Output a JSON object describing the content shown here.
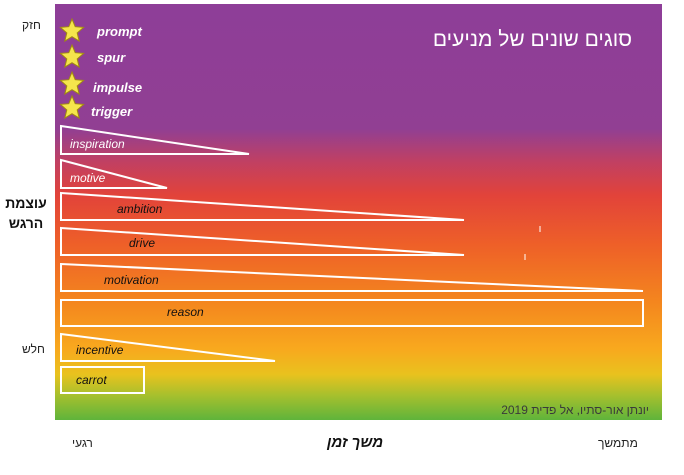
{
  "title": "סוגים שונים של מניעים",
  "credit": "יונתן אור-סתיו, אל פדית 2019",
  "y_axis": {
    "title": "עוצמת הרגש",
    "strong": "חזק",
    "weak": "חלש"
  },
  "x_axis": {
    "title": "משך זמן",
    "start": "רגעי",
    "end": "מתמשך"
  },
  "stars": [
    {
      "label": "prompt"
    },
    {
      "label": "spur"
    },
    {
      "label": "impulse"
    },
    {
      "label": "trigger"
    }
  ],
  "bars": [
    {
      "label": "inspiration"
    },
    {
      "label": "motive"
    },
    {
      "label": "ambition"
    },
    {
      "label": "drive"
    },
    {
      "label": "motivation"
    },
    {
      "label": "reason"
    },
    {
      "label": "incentive"
    },
    {
      "label": "carrot"
    }
  ]
}
